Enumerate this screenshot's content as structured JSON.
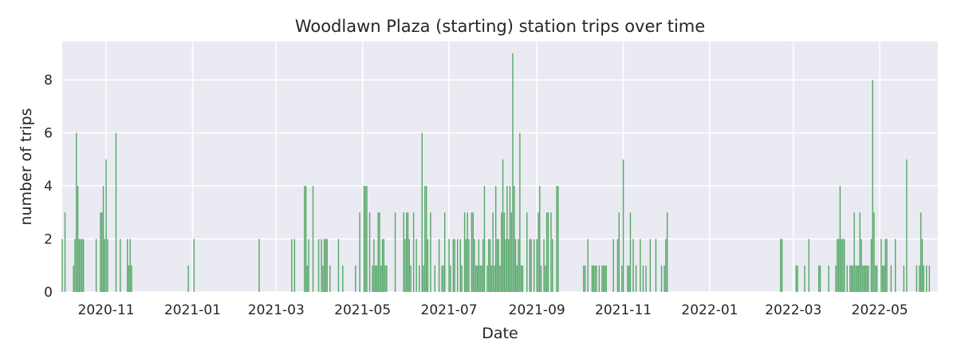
{
  "chart_data": {
    "type": "bar",
    "title": "Woodlawn Plaza (starting) station trips over time",
    "xlabel": "Date",
    "ylabel": "number of trips",
    "xlim": [
      "2020-10-01",
      "2022-06-11"
    ],
    "ylim": [
      0,
      9.45
    ],
    "grid": true,
    "legend": "none",
    "colors": {
      "bar": "#55a868",
      "plot_background": "#eaeaf2",
      "grid": "#ffffff",
      "text": "#262626"
    },
    "x_ticks": [
      "2020-11-01",
      "2021-01-01",
      "2021-03-01",
      "2021-05-01",
      "2021-07-01",
      "2021-09-01",
      "2021-11-01",
      "2022-01-01",
      "2022-03-01",
      "2022-05-01"
    ],
    "x_tick_labels": [
      "2020-11",
      "2021-01",
      "2021-03",
      "2021-05",
      "2021-07",
      "2021-09",
      "2021-11",
      "2022-01",
      "2022-03",
      "2022-05"
    ],
    "y_ticks": [
      0,
      2,
      4,
      6,
      8
    ],
    "y_tick_labels": [
      "0",
      "2",
      "4",
      "6",
      "8"
    ],
    "data": [
      [
        "2020-10-01",
        2
      ],
      [
        "2020-10-03",
        3
      ],
      [
        "2020-10-09",
        1
      ],
      [
        "2020-10-10",
        2
      ],
      [
        "2020-10-11",
        6
      ],
      [
        "2020-10-12",
        4
      ],
      [
        "2020-10-13",
        2
      ],
      [
        "2020-10-14",
        2
      ],
      [
        "2020-10-15",
        2
      ],
      [
        "2020-10-16",
        2
      ],
      [
        "2020-10-25",
        2
      ],
      [
        "2020-10-28",
        3
      ],
      [
        "2020-10-29",
        3
      ],
      [
        "2020-10-30",
        4
      ],
      [
        "2020-10-31",
        2
      ],
      [
        "2020-11-01",
        5
      ],
      [
        "2020-11-02",
        2
      ],
      [
        "2020-11-08",
        6
      ],
      [
        "2020-11-11",
        2
      ],
      [
        "2020-11-16",
        2
      ],
      [
        "2020-11-17",
        1
      ],
      [
        "2020-11-18",
        2
      ],
      [
        "2020-11-19",
        1
      ],
      [
        "2020-12-29",
        1
      ],
      [
        "2021-01-02",
        2
      ],
      [
        "2021-02-17",
        2
      ],
      [
        "2021-03-12",
        2
      ],
      [
        "2021-03-14",
        2
      ],
      [
        "2021-03-21",
        4
      ],
      [
        "2021-03-22",
        4
      ],
      [
        "2021-03-23",
        1
      ],
      [
        "2021-03-24",
        2
      ],
      [
        "2021-03-27",
        4
      ],
      [
        "2021-03-31",
        2
      ],
      [
        "2021-04-02",
        2
      ],
      [
        "2021-04-03",
        1
      ],
      [
        "2021-04-04",
        2
      ],
      [
        "2021-04-05",
        2
      ],
      [
        "2021-04-06",
        2
      ],
      [
        "2021-04-08",
        1
      ],
      [
        "2021-04-14",
        2
      ],
      [
        "2021-04-17",
        1
      ],
      [
        "2021-04-26",
        1
      ],
      [
        "2021-04-29",
        3
      ],
      [
        "2021-05-02",
        4
      ],
      [
        "2021-05-03",
        4
      ],
      [
        "2021-05-04",
        4
      ],
      [
        "2021-05-06",
        3
      ],
      [
        "2021-05-08",
        1
      ],
      [
        "2021-05-09",
        2
      ],
      [
        "2021-05-10",
        1
      ],
      [
        "2021-05-11",
        1
      ],
      [
        "2021-05-12",
        3
      ],
      [
        "2021-05-13",
        3
      ],
      [
        "2021-05-14",
        1
      ],
      [
        "2021-05-15",
        2
      ],
      [
        "2021-05-16",
        2
      ],
      [
        "2021-05-17",
        1
      ],
      [
        "2021-05-18",
        1
      ],
      [
        "2021-05-24",
        3
      ],
      [
        "2021-05-30",
        3
      ],
      [
        "2021-05-31",
        2
      ],
      [
        "2021-06-01",
        3
      ],
      [
        "2021-06-02",
        3
      ],
      [
        "2021-06-03",
        2
      ],
      [
        "2021-06-04",
        1
      ],
      [
        "2021-06-06",
        3
      ],
      [
        "2021-06-08",
        2
      ],
      [
        "2021-06-10",
        1
      ],
      [
        "2021-06-12",
        6
      ],
      [
        "2021-06-13",
        1
      ],
      [
        "2021-06-14",
        4
      ],
      [
        "2021-06-15",
        4
      ],
      [
        "2021-06-16",
        2
      ],
      [
        "2021-06-18",
        3
      ],
      [
        "2021-06-21",
        1
      ],
      [
        "2021-06-24",
        2
      ],
      [
        "2021-06-26",
        1
      ],
      [
        "2021-06-27",
        1
      ],
      [
        "2021-06-28",
        3
      ],
      [
        "2021-07-01",
        2
      ],
      [
        "2021-07-02",
        1
      ],
      [
        "2021-07-04",
        2
      ],
      [
        "2021-07-05",
        2
      ],
      [
        "2021-07-07",
        2
      ],
      [
        "2021-07-09",
        2
      ],
      [
        "2021-07-10",
        1
      ],
      [
        "2021-07-12",
        3
      ],
      [
        "2021-07-13",
        2
      ],
      [
        "2021-07-14",
        3
      ],
      [
        "2021-07-15",
        2
      ],
      [
        "2021-07-17",
        3
      ],
      [
        "2021-07-18",
        3
      ],
      [
        "2021-07-19",
        2
      ],
      [
        "2021-07-20",
        1
      ],
      [
        "2021-07-21",
        1
      ],
      [
        "2021-07-22",
        2
      ],
      [
        "2021-07-23",
        1
      ],
      [
        "2021-07-24",
        1
      ],
      [
        "2021-07-25",
        2
      ],
      [
        "2021-07-26",
        4
      ],
      [
        "2021-07-28",
        1
      ],
      [
        "2021-07-29",
        2
      ],
      [
        "2021-07-30",
        2
      ],
      [
        "2021-07-31",
        1
      ],
      [
        "2021-08-01",
        3
      ],
      [
        "2021-08-02",
        1
      ],
      [
        "2021-08-03",
        4
      ],
      [
        "2021-08-04",
        2
      ],
      [
        "2021-08-05",
        2
      ],
      [
        "2021-08-06",
        1
      ],
      [
        "2021-08-07",
        3
      ],
      [
        "2021-08-08",
        5
      ],
      [
        "2021-08-09",
        3
      ],
      [
        "2021-08-10",
        2
      ],
      [
        "2021-08-11",
        4
      ],
      [
        "2021-08-12",
        2
      ],
      [
        "2021-08-13",
        4
      ],
      [
        "2021-08-14",
        3
      ],
      [
        "2021-08-15",
        9
      ],
      [
        "2021-08-16",
        4
      ],
      [
        "2021-08-17",
        2
      ],
      [
        "2021-08-18",
        1
      ],
      [
        "2021-08-19",
        2
      ],
      [
        "2021-08-20",
        6
      ],
      [
        "2021-08-21",
        1
      ],
      [
        "2021-08-22",
        1
      ],
      [
        "2021-08-25",
        3
      ],
      [
        "2021-08-27",
        2
      ],
      [
        "2021-08-28",
        2
      ],
      [
        "2021-08-30",
        2
      ],
      [
        "2021-09-01",
        2
      ],
      [
        "2021-09-02",
        3
      ],
      [
        "2021-09-03",
        4
      ],
      [
        "2021-09-04",
        1
      ],
      [
        "2021-09-06",
        2
      ],
      [
        "2021-09-07",
        1
      ],
      [
        "2021-09-08",
        3
      ],
      [
        "2021-09-09",
        3
      ],
      [
        "2021-09-11",
        3
      ],
      [
        "2021-09-12",
        2
      ],
      [
        "2021-09-15",
        4
      ],
      [
        "2021-09-16",
        4
      ],
      [
        "2021-10-04",
        1
      ],
      [
        "2021-10-05",
        1
      ],
      [
        "2021-10-07",
        2
      ],
      [
        "2021-10-10",
        1
      ],
      [
        "2021-10-11",
        1
      ],
      [
        "2021-10-12",
        1
      ],
      [
        "2021-10-13",
        1
      ],
      [
        "2021-10-15",
        1
      ],
      [
        "2021-10-17",
        1
      ],
      [
        "2021-10-18",
        1
      ],
      [
        "2021-10-19",
        1
      ],
      [
        "2021-10-20",
        1
      ],
      [
        "2021-10-25",
        2
      ],
      [
        "2021-10-28",
        2
      ],
      [
        "2021-10-29",
        3
      ],
      [
        "2021-10-31",
        1
      ],
      [
        "2021-11-01",
        5
      ],
      [
        "2021-11-04",
        1
      ],
      [
        "2021-11-05",
        1
      ],
      [
        "2021-11-06",
        3
      ],
      [
        "2021-11-08",
        2
      ],
      [
        "2021-11-10",
        1
      ],
      [
        "2021-11-13",
        2
      ],
      [
        "2021-11-15",
        1
      ],
      [
        "2021-11-17",
        1
      ],
      [
        "2021-11-20",
        2
      ],
      [
        "2021-11-24",
        2
      ],
      [
        "2021-11-28",
        1
      ],
      [
        "2021-11-30",
        1
      ],
      [
        "2021-12-01",
        2
      ],
      [
        "2021-12-02",
        3
      ],
      [
        "2022-02-20",
        2
      ],
      [
        "2022-02-21",
        2
      ],
      [
        "2022-03-03",
        1
      ],
      [
        "2022-03-04",
        1
      ],
      [
        "2022-03-09",
        1
      ],
      [
        "2022-03-12",
        2
      ],
      [
        "2022-03-19",
        1
      ],
      [
        "2022-03-20",
        1
      ],
      [
        "2022-03-26",
        1
      ],
      [
        "2022-03-31",
        1
      ],
      [
        "2022-04-01",
        2
      ],
      [
        "2022-04-02",
        2
      ],
      [
        "2022-04-03",
        4
      ],
      [
        "2022-04-04",
        2
      ],
      [
        "2022-04-05",
        2
      ],
      [
        "2022-04-06",
        2
      ],
      [
        "2022-04-08",
        1
      ],
      [
        "2022-04-10",
        1
      ],
      [
        "2022-04-11",
        1
      ],
      [
        "2022-04-12",
        1
      ],
      [
        "2022-04-13",
        3
      ],
      [
        "2022-04-14",
        1
      ],
      [
        "2022-04-15",
        1
      ],
      [
        "2022-04-16",
        1
      ],
      [
        "2022-04-17",
        3
      ],
      [
        "2022-04-18",
        2
      ],
      [
        "2022-04-19",
        1
      ],
      [
        "2022-04-20",
        1
      ],
      [
        "2022-04-21",
        1
      ],
      [
        "2022-04-22",
        1
      ],
      [
        "2022-04-23",
        1
      ],
      [
        "2022-04-25",
        2
      ],
      [
        "2022-04-26",
        8
      ],
      [
        "2022-04-27",
        3
      ],
      [
        "2022-04-28",
        1
      ],
      [
        "2022-04-29",
        1
      ],
      [
        "2022-05-02",
        2
      ],
      [
        "2022-05-03",
        1
      ],
      [
        "2022-05-04",
        1
      ],
      [
        "2022-05-05",
        2
      ],
      [
        "2022-05-06",
        2
      ],
      [
        "2022-05-09",
        1
      ],
      [
        "2022-05-12",
        2
      ],
      [
        "2022-05-18",
        1
      ],
      [
        "2022-05-20",
        5
      ],
      [
        "2022-05-27",
        1
      ],
      [
        "2022-05-29",
        1
      ],
      [
        "2022-05-30",
        3
      ],
      [
        "2022-05-31",
        2
      ],
      [
        "2022-06-01",
        1
      ],
      [
        "2022-06-03",
        1
      ],
      [
        "2022-06-05",
        1
      ]
    ]
  }
}
